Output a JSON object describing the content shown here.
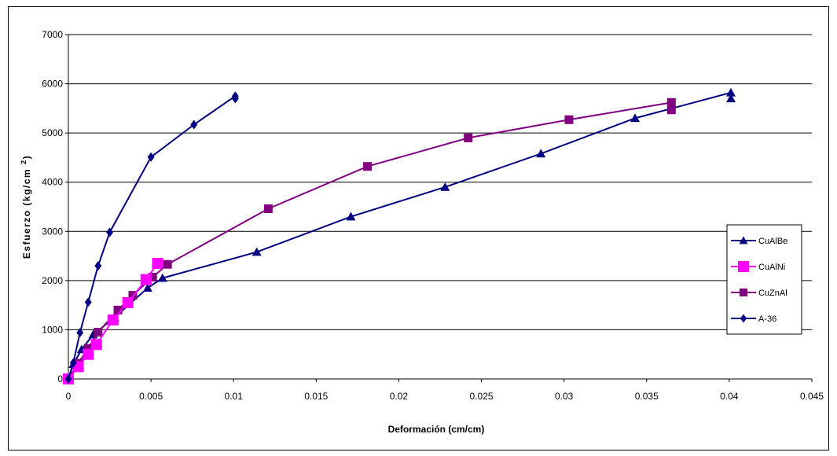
{
  "chart_data": {
    "type": "line",
    "title": "",
    "xlabel": "Deformación (cm/cm)",
    "ylabel": "Esfuerzo (kg/cm 2)",
    "ylabel_main": "Esfuerzo (kg/cm",
    "ylabel_sup": "2",
    "ylabel_close": ")",
    "xlim": [
      0,
      0.045
    ],
    "ylim": [
      0,
      7000
    ],
    "xticks": [
      0,
      0.005,
      0.01,
      0.015,
      0.02,
      0.025,
      0.03,
      0.035,
      0.04,
      0.045
    ],
    "xtick_labels": [
      "0",
      "0.005",
      "0.01",
      "0.015",
      "0.02",
      "0.025",
      "0.03",
      "0.035",
      "0.04",
      "0.045"
    ],
    "yticks": [
      0,
      1000,
      2000,
      3000,
      4000,
      5000,
      6000,
      7000
    ],
    "ytick_labels": [
      "0",
      "1000",
      "2000",
      "3000",
      "4000",
      "5000",
      "6000",
      "7000"
    ],
    "grid": "horizontal",
    "legend_position": "right",
    "series": [
      {
        "name": "CuAlBe",
        "color": "#000080",
        "marker": "triangle",
        "x": [
          0,
          0.0003,
          0.0008,
          0.0015,
          0.0028,
          0.0048,
          0.0057,
          0.0114,
          0.0171,
          0.0228,
          0.0286,
          0.0343,
          0.0401,
          0.0401
        ],
        "y": [
          0,
          300,
          600,
          900,
          1250,
          1850,
          2050,
          2580,
          3300,
          3900,
          4580,
          5300,
          5820,
          5700
        ]
      },
      {
        "name": "CuAlNi",
        "color": "#FF00FF",
        "marker": "square",
        "x": [
          0,
          0.0006,
          0.0012,
          0.0017,
          0.0027,
          0.0036,
          0.0047,
          0.0054
        ],
        "y": [
          0,
          250,
          500,
          700,
          1200,
          1550,
          2020,
          2350
        ]
      },
      {
        "name": "CuZnAl",
        "color": "#800080",
        "marker": "square",
        "x": [
          0,
          0.0006,
          0.0012,
          0.0018,
          0.003,
          0.0039,
          0.0051,
          0.006,
          0.0121,
          0.0181,
          0.0242,
          0.0303,
          0.0365,
          0.0365
        ],
        "y": [
          0,
          320,
          620,
          950,
          1400,
          1700,
          2070,
          2330,
          3460,
          4320,
          4900,
          5270,
          5620,
          5470
        ]
      },
      {
        "name": "A-36",
        "color": "#000080",
        "marker": "diamond",
        "x": [
          0,
          0.0003,
          0.0007,
          0.0012,
          0.0018,
          0.0025,
          0.005,
          0.0076,
          0.0101,
          0.0101
        ],
        "y": [
          0,
          330,
          940,
          1560,
          2300,
          2980,
          4510,
          5170,
          5750,
          5700
        ]
      }
    ]
  }
}
